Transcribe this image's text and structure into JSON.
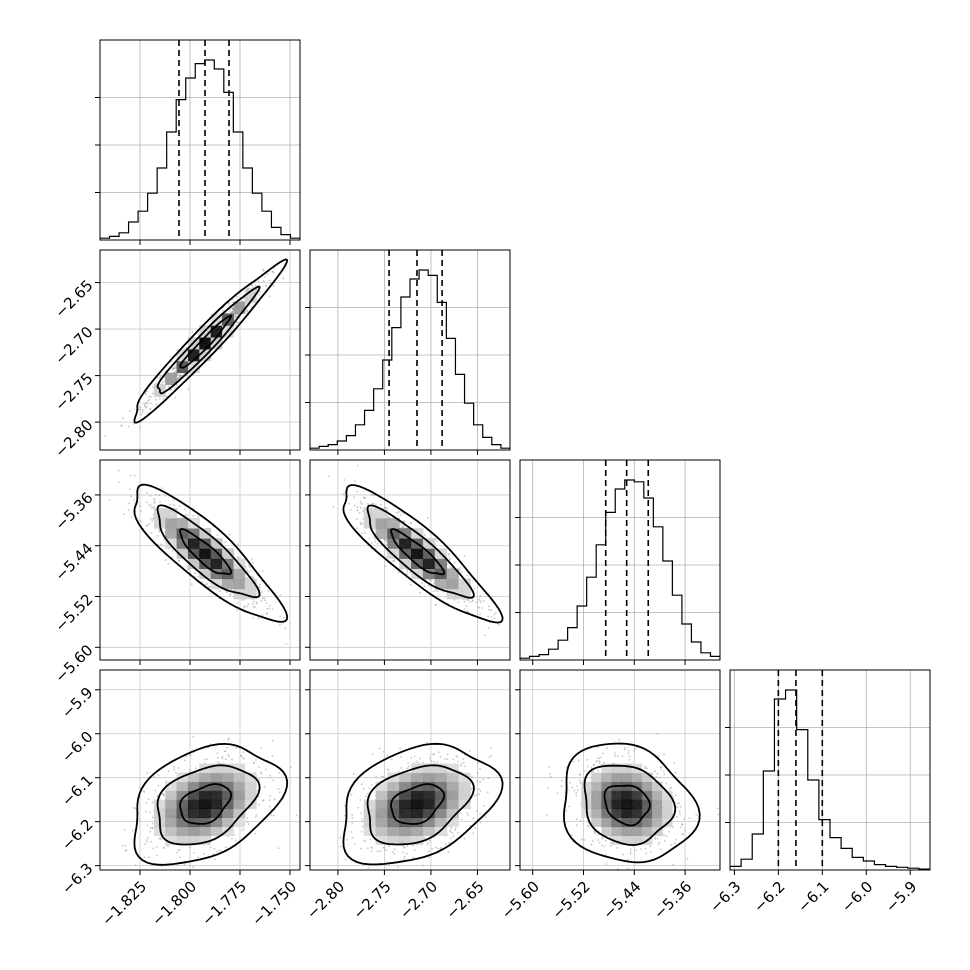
{
  "chart_data": {
    "type": "corner",
    "title": "",
    "grid": true,
    "color": "#000000",
    "scatter_color": "#9a9a9a",
    "parameters": [
      {
        "ticks": [
          -1.825,
          -1.8,
          -1.775,
          -1.75
        ],
        "tick_labels": [
          "−1.825",
          "−1.800",
          "−1.775",
          "−1.750"
        ],
        "range": [
          -1.845,
          -1.745
        ],
        "quantiles": [
          -1.8055,
          -1.7925,
          -1.7805
        ],
        "hist": [
          0.01,
          0.02,
          0.04,
          0.1,
          0.16,
          0.26,
          0.4,
          0.6,
          0.78,
          0.9,
          0.98,
          1.0,
          0.95,
          0.82,
          0.6,
          0.4,
          0.26,
          0.16,
          0.07,
          0.03,
          0.01
        ]
      },
      {
        "ticks": [
          -2.8,
          -2.75,
          -2.7,
          -2.65
        ],
        "tick_labels": [
          "−2.80",
          "−2.75",
          "−2.70",
          "−2.65"
        ],
        "range": [
          -2.83,
          -2.615
        ],
        "quantiles": [
          -2.745,
          -2.715,
          -2.688
        ],
        "hist": [
          0.01,
          0.02,
          0.03,
          0.05,
          0.08,
          0.14,
          0.22,
          0.34,
          0.5,
          0.68,
          0.85,
          0.95,
          1.0,
          0.97,
          0.82,
          0.62,
          0.42,
          0.26,
          0.14,
          0.07,
          0.03,
          0.01
        ]
      },
      {
        "ticks": [
          -5.6,
          -5.52,
          -5.44,
          -5.36
        ],
        "tick_labels": [
          "−5.60",
          "−5.52",
          "−5.44",
          "−5.36"
        ],
        "range": [
          -5.62,
          -5.305
        ],
        "quantiles": [
          -5.485,
          -5.452,
          -5.418
        ],
        "hist": [
          0.01,
          0.02,
          0.03,
          0.06,
          0.11,
          0.18,
          0.3,
          0.46,
          0.64,
          0.82,
          0.95,
          1.0,
          0.99,
          0.9,
          0.74,
          0.55,
          0.36,
          0.2,
          0.1,
          0.04,
          0.02
        ]
      },
      {
        "ticks": [
          -6.3,
          -6.2,
          -6.1,
          -6.0,
          -5.9
        ],
        "tick_labels": [
          "−6.3",
          "−6.2",
          "−6.1",
          "−6.0",
          "−5.9"
        ],
        "range": [
          -6.31,
          -5.855
        ],
        "quantiles": [
          -6.2,
          -6.16,
          -6.1
        ],
        "hist": [
          0.02,
          0.06,
          0.2,
          0.55,
          0.95,
          1.0,
          0.78,
          0.5,
          0.28,
          0.18,
          0.12,
          0.07,
          0.05,
          0.03,
          0.02,
          0.015,
          0.01,
          0.005
        ]
      }
    ],
    "pairs": [
      {
        "row": 1,
        "col": 0,
        "mean": [
          -1.7925,
          -2.715
        ],
        "sd": [
          0.0125,
          0.028
        ],
        "rho": 0.97
      },
      {
        "row": 2,
        "col": 0,
        "mean": [
          -1.7925,
          -5.452
        ],
        "sd": [
          0.0125,
          0.035
        ],
        "rho": -0.86
      },
      {
        "row": 2,
        "col": 1,
        "mean": [
          -2.715,
          -5.452
        ],
        "sd": [
          0.028,
          0.035
        ],
        "rho": -0.88
      },
      {
        "row": 3,
        "col": 0,
        "mean": [
          -1.7925,
          -6.16
        ],
        "sd": [
          0.0125,
          0.045
        ],
        "rho": 0.35
      },
      {
        "row": 3,
        "col": 1,
        "mean": [
          -2.715,
          -6.16
        ],
        "sd": [
          0.028,
          0.045
        ],
        "rho": 0.33
      },
      {
        "row": 3,
        "col": 2,
        "mean": [
          -5.452,
          -6.16
        ],
        "sd": [
          0.035,
          0.045
        ],
        "rho": -0.15
      }
    ],
    "levels": [
      0.393,
      0.865,
      0.989
    ]
  }
}
